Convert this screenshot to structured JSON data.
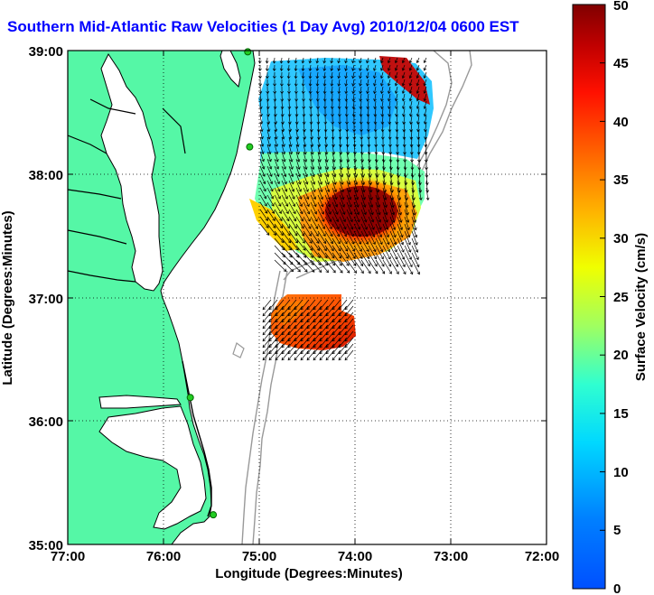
{
  "title": "Southern Mid-Atlantic Raw Velocities (1 Day Avg) 2010/12/04 0600 EST",
  "map": {
    "xlabel": "Longitude (Degrees:Minutes)",
    "ylabel": "Latitude (Degrees:Minutes)",
    "x_ticks": [
      "77:00",
      "76:00",
      "75:00",
      "74:00",
      "73:00",
      "72:00"
    ],
    "y_ticks": [
      "39:00",
      "38:00",
      "37:00",
      "36:00",
      "35:00"
    ],
    "lon_range": [
      -77,
      -72
    ],
    "lat_range": [
      35,
      39
    ],
    "grid": "dotted",
    "land_color": "#55f7a6",
    "water_color": "#ffffff",
    "isobath_color": "#999999",
    "coastline_color": "#000000",
    "vector_color": "#000000",
    "station_color": "#22cc22",
    "stations": [
      {
        "lon": -75.12,
        "lat": 38.99
      },
      {
        "lon": -75.1,
        "lat": 38.22
      },
      {
        "lon": -75.72,
        "lat": 36.19
      },
      {
        "lon": -75.48,
        "lat": 35.24
      }
    ]
  },
  "colorbar": {
    "label": "Surface Velocity (cm/s)",
    "ticks": [
      "0",
      "5",
      "10",
      "15",
      "20",
      "25",
      "30",
      "35",
      "40",
      "45",
      "50"
    ],
    "min": 0,
    "max": 50,
    "colormap": "jet"
  }
}
